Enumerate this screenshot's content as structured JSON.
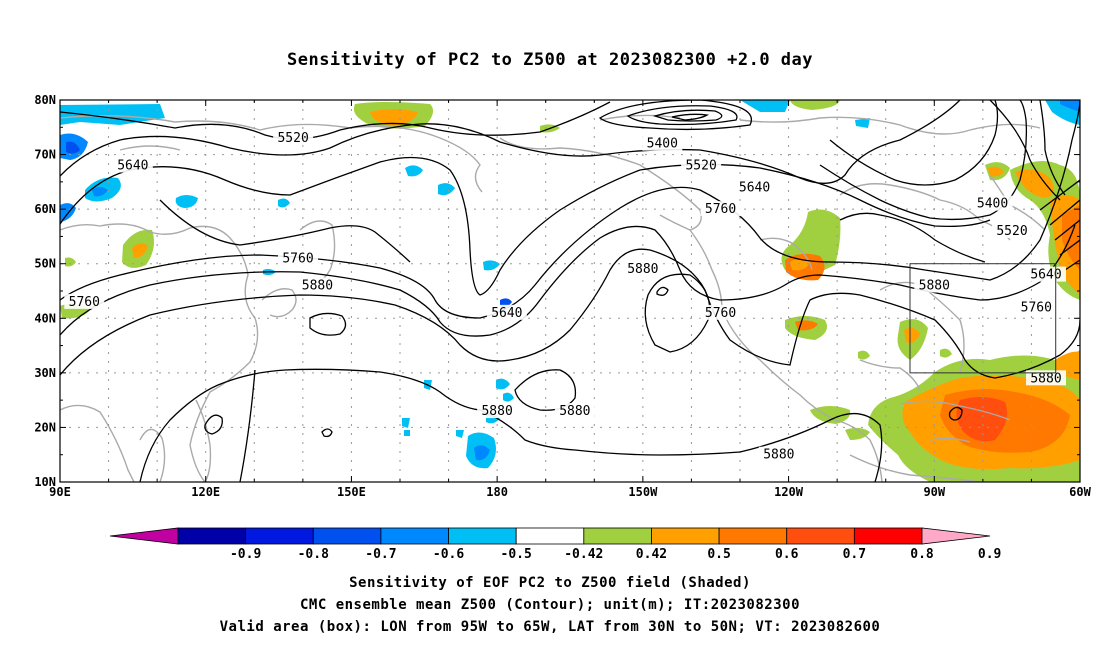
{
  "title": "Sensitivity of PC2 to Z500 at 2023082300 +2.0 day",
  "map": {
    "lon_range": [
      90,
      300
    ],
    "lat_range": [
      10,
      80
    ],
    "lat_labels": [
      "10N",
      "20N",
      "30N",
      "40N",
      "50N",
      "60N",
      "70N",
      "80N"
    ],
    "lon_labels": [
      "90E",
      "120E",
      "150E",
      "180",
      "150W",
      "120W",
      "90W",
      "60W"
    ],
    "valid_box": {
      "lon": [
        265,
        295
      ],
      "lat": [
        30,
        50
      ]
    },
    "contour_labels": [
      {
        "text": "5520",
        "lon": 138,
        "lat": 73
      },
      {
        "text": "5640",
        "lon": 105,
        "lat": 68
      },
      {
        "text": "5400",
        "lon": 214,
        "lat": 72
      },
      {
        "text": "5520",
        "lon": 222,
        "lat": 68
      },
      {
        "text": "5640",
        "lon": 233,
        "lat": 64
      },
      {
        "text": "5760",
        "lon": 226,
        "lat": 60
      },
      {
        "text": "5400",
        "lon": 282,
        "lat": 61
      },
      {
        "text": "5520",
        "lon": 286,
        "lat": 56
      },
      {
        "text": "5640",
        "lon": 293,
        "lat": 48
      },
      {
        "text": "5760",
        "lon": 291,
        "lat": 42
      },
      {
        "text": "5880",
        "lon": 293,
        "lat": 29
      },
      {
        "text": "5880",
        "lon": 270,
        "lat": 46
      },
      {
        "text": "5760",
        "lon": 139,
        "lat": 51
      },
      {
        "text": "5880",
        "lon": 143,
        "lat": 46
      },
      {
        "text": "5760",
        "lon": 95,
        "lat": 43
      },
      {
        "text": "5640",
        "lon": 182,
        "lat": 41
      },
      {
        "text": "5880",
        "lon": 210,
        "lat": 49
      },
      {
        "text": "5760",
        "lon": 226,
        "lat": 41
      },
      {
        "text": "5880",
        "lon": 180,
        "lat": 23
      },
      {
        "text": "5880",
        "lon": 196,
        "lat": 23
      },
      {
        "text": "5880",
        "lon": 238,
        "lat": 15
      }
    ]
  },
  "colorbar": {
    "colors": [
      "#c000a0",
      "#0000a8",
      "#0018e0",
      "#0050f0",
      "#0088ff",
      "#00bff5",
      "#ffffff",
      "#a0d040",
      "#ffa000",
      "#ff7800",
      "#ff4e0e",
      "#ff0000",
      "#ffa8c8"
    ],
    "labels": [
      "-0.9",
      "-0.8",
      "-0.7",
      "-0.6",
      "-0.5",
      "-0.42",
      "0.42",
      "0.5",
      "0.6",
      "0.7",
      "0.8",
      "0.9"
    ]
  },
  "captions": {
    "line1": "Sensitivity of EOF PC2 to Z500 field (Shaded)",
    "line2": "CMC ensemble mean Z500 (Contour); unit(m); IT:2023082300",
    "line3": "Valid area (box): LON from 95W to 65W, LAT from 30N to 50N; VT: 2023082600"
  }
}
